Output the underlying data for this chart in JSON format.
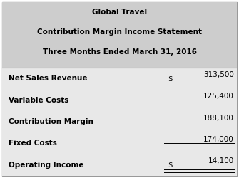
{
  "header_lines": [
    "Global Travel",
    "Contribution Margin Income Statement",
    "Three Months Ended March 31, 2016"
  ],
  "header_bg": "#cdcdcd",
  "body_bg": "#e8e8e8",
  "border_color": "#999999",
  "table_rows": [
    {
      "label": "Net Sales Revenue",
      "dollar": "$",
      "value": "313,500",
      "underline_after": false,
      "double_underline_after": false
    },
    {
      "label": "Variable Costs",
      "dollar": "",
      "value": "125,400",
      "underline_after": true,
      "double_underline_after": false
    },
    {
      "label": "Contribution Margin",
      "dollar": "",
      "value": "188,100",
      "underline_after": false,
      "double_underline_after": false
    },
    {
      "label": "Fixed Costs",
      "dollar": "",
      "value": "174,000",
      "underline_after": true,
      "double_underline_after": false
    },
    {
      "label": "Operating Income",
      "dollar": "$",
      "value": "14,100",
      "underline_after": false,
      "double_underline_after": true
    }
  ],
  "header_fontsize": 7.5,
  "body_fontsize": 7.5,
  "fig_width": 3.35,
  "fig_height": 2.5
}
